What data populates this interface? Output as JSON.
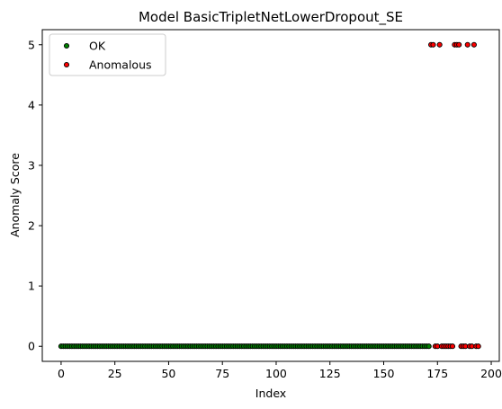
{
  "chart_data": {
    "type": "scatter",
    "title": "Model BasicTripletNetLowerDropout_SE",
    "xlabel": "Index",
    "ylabel": "Anomaly Score",
    "xlim": [
      -8.75,
      203.75
    ],
    "ylim": [
      -0.25,
      5.25
    ],
    "xticks": [
      0,
      25,
      50,
      75,
      100,
      125,
      150,
      175,
      200
    ],
    "yticks": [
      0,
      1,
      2,
      3,
      4,
      5
    ],
    "legend_position": "upper-left",
    "series": [
      {
        "name": "OK",
        "color": "#008000",
        "edgecolor": "#000000",
        "index_range": [
          0,
          171
        ],
        "value": 0
      },
      {
        "name": "Anomalous",
        "color": "#ff0000",
        "edgecolor": "#000000",
        "points": [
          [
            172,
            5
          ],
          [
            173,
            5
          ],
          [
            174,
            0
          ],
          [
            175,
            0
          ],
          [
            176,
            5
          ],
          [
            177,
            0
          ],
          [
            178,
            0
          ],
          [
            179,
            0
          ],
          [
            180,
            0
          ],
          [
            181,
            0
          ],
          [
            182,
            0
          ],
          [
            183,
            5
          ],
          [
            184,
            5
          ],
          [
            185,
            5
          ],
          [
            186,
            0
          ],
          [
            187,
            0
          ],
          [
            188,
            0
          ],
          [
            189,
            5
          ],
          [
            190,
            0
          ],
          [
            191,
            0
          ],
          [
            192,
            5
          ],
          [
            193,
            0
          ],
          [
            194,
            0
          ]
        ]
      }
    ]
  }
}
